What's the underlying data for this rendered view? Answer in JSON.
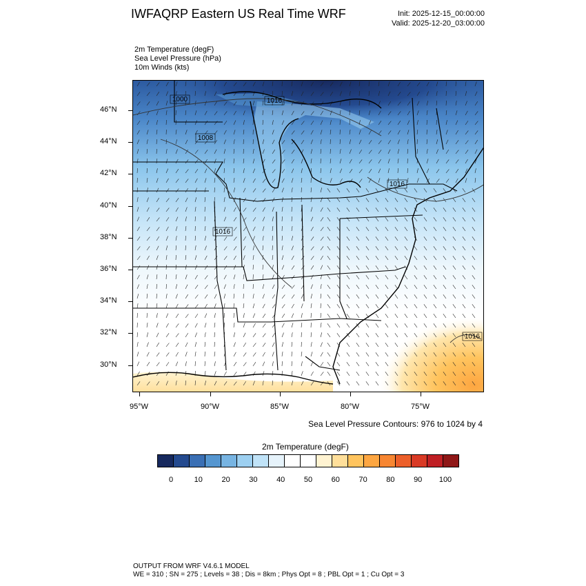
{
  "header": {
    "title": "IWFAQRP Eastern US Real Time WRF",
    "init": "Init: 2025-12-15_00:00:00",
    "valid": "Valid: 2025-12-20_03:00:00"
  },
  "fields": {
    "temp": "2m Temperature   (degF)",
    "slp": "Sea Level Pressure   (hPa)",
    "wind": "10m Winds   (kts)"
  },
  "map": {
    "lat_labels": [
      "46°N",
      "44°N",
      "42°N",
      "40°N",
      "38°N",
      "36°N",
      "34°N",
      "32°N",
      "30°N"
    ],
    "lon_labels": [
      "95°W",
      "90°W",
      "85°W",
      "80°W",
      "75°W"
    ],
    "contour_labels": [
      "1000",
      "1016",
      "1008",
      "1016",
      "1016",
      "1016"
    ]
  },
  "slp_note": "Sea Level Pressure Contours: 976 to 1024 by 4",
  "colorbar": {
    "title": "2m Temperature  (degF)",
    "ticks": [
      "0",
      "10",
      "20",
      "30",
      "40",
      "50",
      "60",
      "70",
      "80",
      "90",
      "100"
    ],
    "colors": [
      "#17295e",
      "#244a8f",
      "#3a6fb4",
      "#5596d0",
      "#77b4e2",
      "#9dd0f1",
      "#c0e3f8",
      "#e6f3fb",
      "#ffffff",
      "#ffffff",
      "#fff3d1",
      "#ffdf9a",
      "#ffc45e",
      "#fda641",
      "#f78632",
      "#ec5f2a",
      "#d93a25",
      "#bf1f24",
      "#8f1717"
    ]
  },
  "footer": {
    "line1": "OUTPUT FROM WRF V4.6.1 MODEL",
    "line2": "WE = 310 ; SN = 275 ; Levels = 38 ; Dis = 8km ; Phys Opt = 8 ; PBL Opt = 1 ; Cu Opt = 3"
  }
}
